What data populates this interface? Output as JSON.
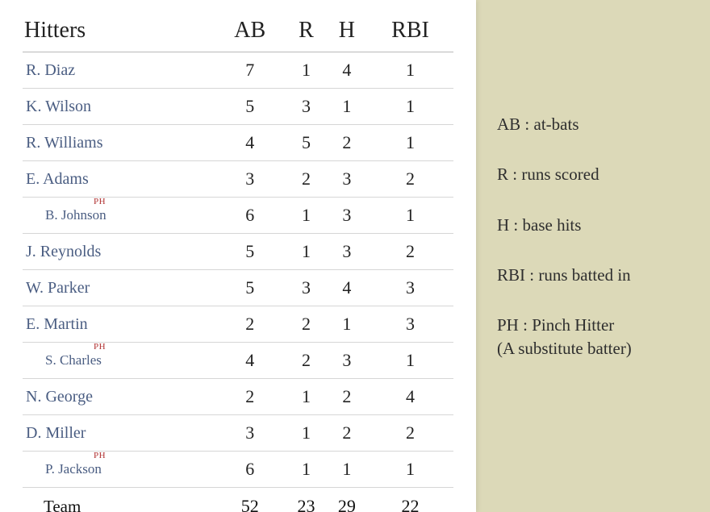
{
  "table": {
    "headers": {
      "name": "Hitters",
      "ab": "AB",
      "r": "R",
      "h": "H",
      "rbi": "RBI"
    },
    "rows": [
      {
        "name": "R. Diaz",
        "ab": "7",
        "r": "1",
        "h": "4",
        "rbi": "1",
        "sub": false,
        "ph": false
      },
      {
        "name": "K. Wilson",
        "ab": "5",
        "r": "3",
        "h": "1",
        "rbi": "1",
        "sub": false,
        "ph": false
      },
      {
        "name": "R. Williams",
        "ab": "4",
        "r": "5",
        "h": "2",
        "rbi": "1",
        "sub": false,
        "ph": false
      },
      {
        "name": "E.  Adams",
        "ab": "3",
        "r": "2",
        "h": "3",
        "rbi": "2",
        "sub": false,
        "ph": false
      },
      {
        "name": "B. Johnson",
        "ab": "6",
        "r": "1",
        "h": "3",
        "rbi": "1",
        "sub": true,
        "ph": true
      },
      {
        "name": "J. Reynolds",
        "ab": "5",
        "r": "1",
        "h": "3",
        "rbi": "2",
        "sub": false,
        "ph": false
      },
      {
        "name": "W. Parker",
        "ab": "5",
        "r": "3",
        "h": "4",
        "rbi": "3",
        "sub": false,
        "ph": false
      },
      {
        "name": "E. Martin",
        "ab": "2",
        "r": "2",
        "h": "1",
        "rbi": "3",
        "sub": false,
        "ph": false
      },
      {
        "name": "S. Charles",
        "ab": "4",
        "r": "2",
        "h": "3",
        "rbi": "1",
        "sub": true,
        "ph": true
      },
      {
        "name": "N. George",
        "ab": "2",
        "r": "1",
        "h": "2",
        "rbi": "4",
        "sub": false,
        "ph": false
      },
      {
        "name": "D. Miller",
        "ab": "3",
        "r": "1",
        "h": "2",
        "rbi": "2",
        "sub": false,
        "ph": false
      },
      {
        "name": "P. Jackson",
        "ab": "6",
        "r": "1",
        "h": "1",
        "rbi": "1",
        "sub": true,
        "ph": true
      }
    ],
    "team": {
      "label": "Team",
      "ab": "52",
      "r": "23",
      "h": "29",
      "rbi": "22"
    },
    "ph_tag": "PH"
  },
  "legend": [
    {
      "k": "AB :",
      "v": "at-bats"
    },
    {
      "k": "R :",
      "v": "  runs scored"
    },
    {
      "k": "H :",
      "v": "  base hits"
    },
    {
      "k": "RBI :",
      "v": "runs batted in"
    },
    {
      "k": "PH :",
      "v": "Pinch Hitter",
      "v2": "(A substitute batter)"
    }
  ],
  "colors": {
    "page_bg": "#dcd9b8",
    "card_bg": "#ffffff",
    "header_text": "#222222",
    "player_text": "#4a5d82",
    "value_text": "#222222",
    "ph_tag": "#b03030",
    "rule": "#d6d6d6",
    "header_rule": "#b8b8b8"
  }
}
